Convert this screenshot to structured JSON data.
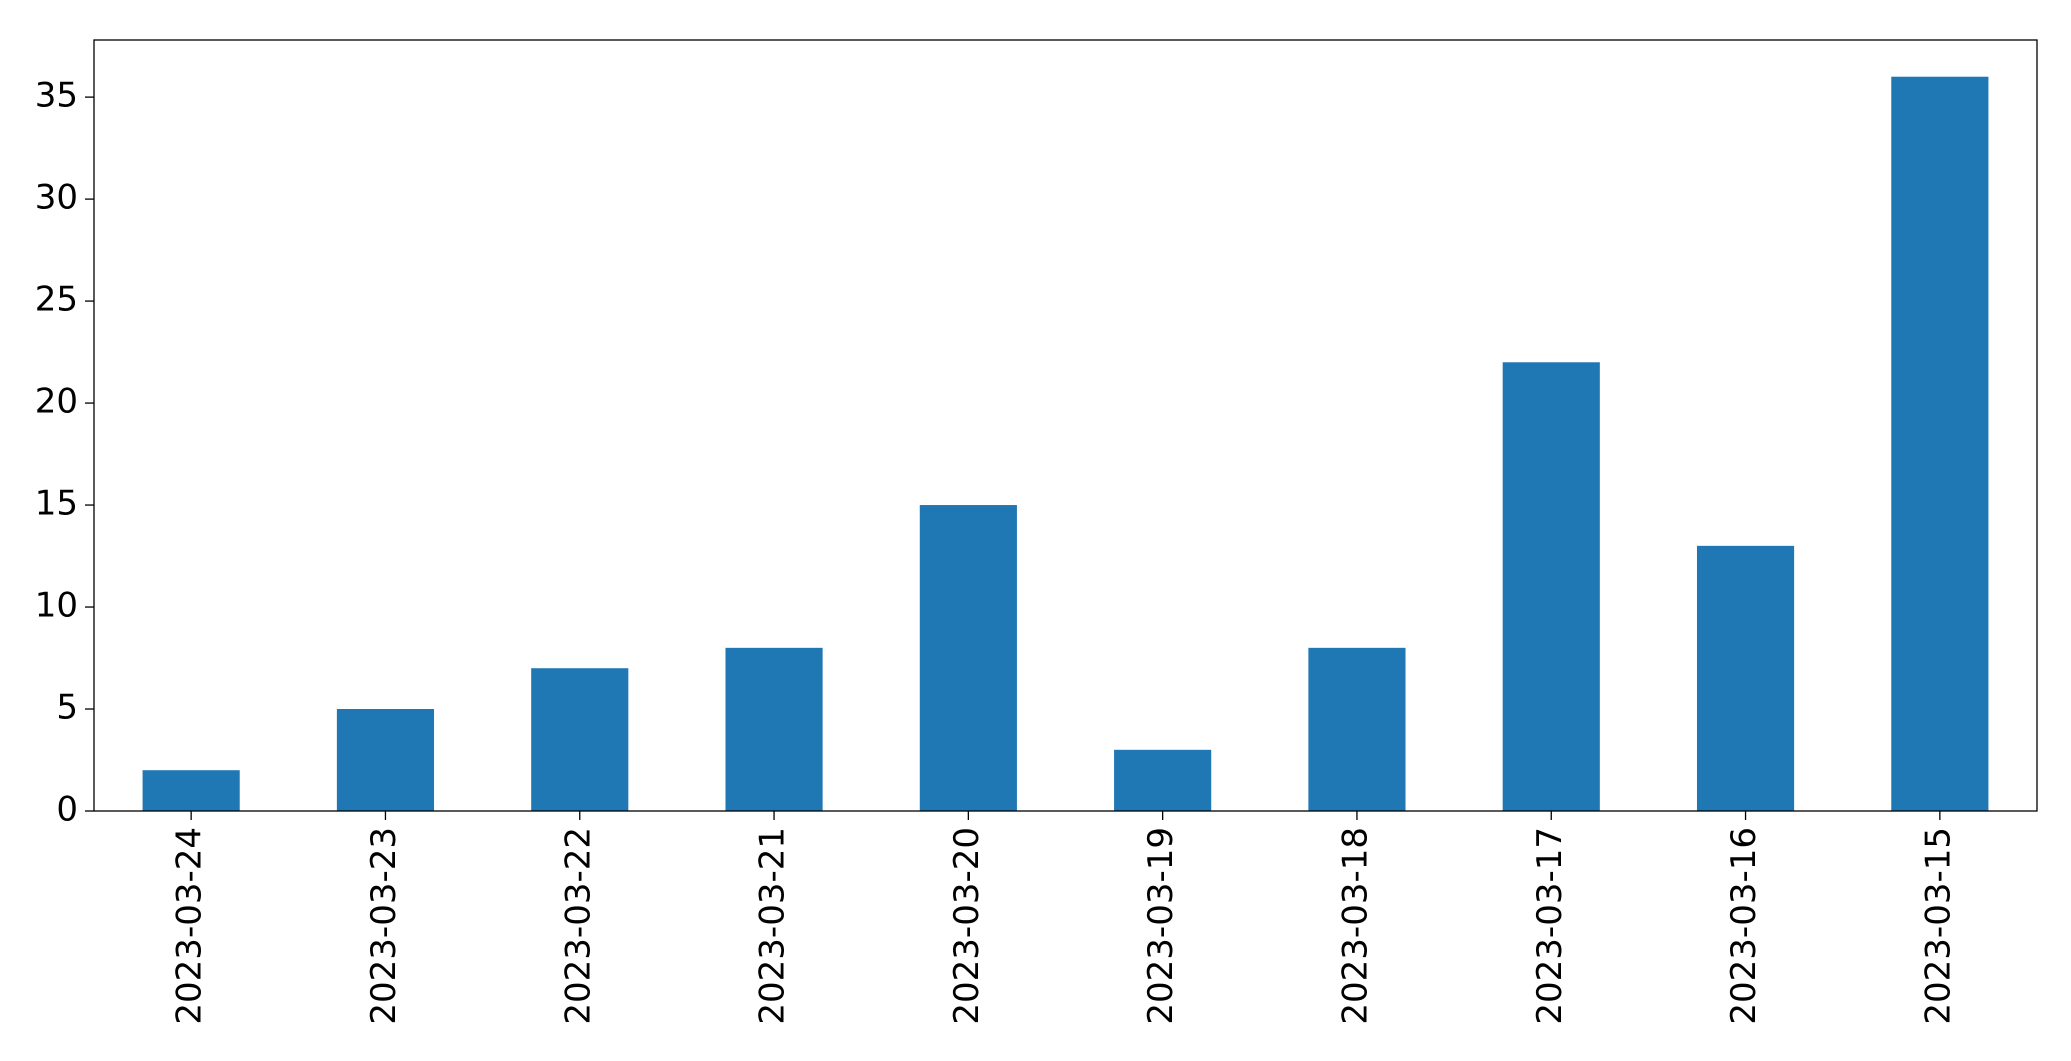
{
  "chart_data": {
    "type": "bar",
    "categories": [
      "2023-03-24",
      "2023-03-23",
      "2023-03-22",
      "2023-03-21",
      "2023-03-20",
      "2023-03-19",
      "2023-03-18",
      "2023-03-17",
      "2023-03-16",
      "2023-03-15"
    ],
    "values": [
      2,
      5,
      7,
      8,
      15,
      3,
      8,
      22,
      13,
      36
    ],
    "color": "#1f77b4",
    "ylim": [
      0,
      37.8
    ],
    "yticks": [
      0,
      5,
      10,
      15,
      20,
      25,
      30,
      35
    ],
    "grid": false
  }
}
